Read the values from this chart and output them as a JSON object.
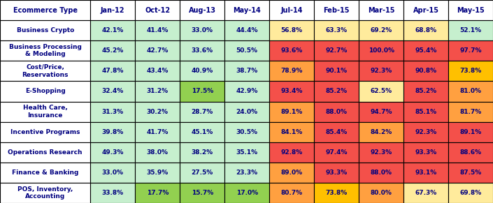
{
  "col_headers": [
    "Ecommerce Type",
    "Jan-12",
    "Oct-12",
    "Aug-13",
    "May-14",
    "Jul-14",
    "Feb-15",
    "Mar-15",
    "Apr-15",
    "May-15"
  ],
  "rows": [
    {
      "label": "Business Crypto",
      "values": [
        "42.1%",
        "41.4%",
        "33.0%",
        "44.4%",
        "56.8%",
        "63.3%",
        "69.2%",
        "68.8%",
        "52.1%"
      ]
    },
    {
      "label": "Business Processing\n& Modeling",
      "values": [
        "45.2%",
        "42.7%",
        "33.6%",
        "50.5%",
        "93.6%",
        "92.7%",
        "100.0%",
        "95.4%",
        "97.7%"
      ]
    },
    {
      "label": "Cost/Price,\nReservations",
      "values": [
        "47.8%",
        "43.4%",
        "40.9%",
        "38.7%",
        "78.9%",
        "90.1%",
        "92.3%",
        "90.8%",
        "73.8%"
      ]
    },
    {
      "label": "E-Shopping",
      "values": [
        "32.4%",
        "31.2%",
        "17.5%",
        "42.9%",
        "93.4%",
        "85.2%",
        "62.5%",
        "85.2%",
        "81.0%"
      ]
    },
    {
      "label": "Health Care,\nInsurance",
      "values": [
        "31.3%",
        "30.2%",
        "28.7%",
        "24.0%",
        "89.1%",
        "88.0%",
        "94.7%",
        "85.1%",
        "81.7%"
      ]
    },
    {
      "label": "Incentive Programs",
      "values": [
        "39.8%",
        "41.7%",
        "45.1%",
        "30.5%",
        "84.1%",
        "85.4%",
        "84.2%",
        "92.3%",
        "89.1%"
      ]
    },
    {
      "label": "Operations Research",
      "values": [
        "49.3%",
        "38.0%",
        "38.2%",
        "35.1%",
        "92.8%",
        "97.4%",
        "92.3%",
        "93.3%",
        "88.6%"
      ]
    },
    {
      "label": "Finance & Banking",
      "values": [
        "33.0%",
        "35.9%",
        "27.5%",
        "23.3%",
        "89.0%",
        "93.3%",
        "88.0%",
        "93.1%",
        "87.5%"
      ]
    },
    {
      "label": "POS, Inventory,\nAccounting",
      "values": [
        "33.8%",
        "17.7%",
        "15.7%",
        "17.0%",
        "80.7%",
        "73.8%",
        "80.0%",
        "67.3%",
        "69.8%"
      ]
    }
  ],
  "cell_colors": [
    [
      "#c6efce",
      "#c6efce",
      "#c6efce",
      "#c6efce",
      "#ffeb9c",
      "#ffeb9c",
      "#ffeb9c",
      "#ffeb9c",
      "#c6efce"
    ],
    [
      "#c6efce",
      "#c6efce",
      "#c6efce",
      "#c6efce",
      "#f4504a",
      "#f4504a",
      "#f4504a",
      "#f4504a",
      "#f4504a"
    ],
    [
      "#c6efce",
      "#c6efce",
      "#c6efce",
      "#c6efce",
      "#ffa040",
      "#f4504a",
      "#f4504a",
      "#f4504a",
      "#ffc000"
    ],
    [
      "#c6efce",
      "#c6efce",
      "#92d050",
      "#c6efce",
      "#f4504a",
      "#f4504a",
      "#ffeb9c",
      "#f4504a",
      "#ffa040"
    ],
    [
      "#c6efce",
      "#c6efce",
      "#c6efce",
      "#c6efce",
      "#ffa040",
      "#f4504a",
      "#f4504a",
      "#f4504a",
      "#ffa040"
    ],
    [
      "#c6efce",
      "#c6efce",
      "#c6efce",
      "#c6efce",
      "#ffa040",
      "#f4504a",
      "#ffa040",
      "#f4504a",
      "#f4504a"
    ],
    [
      "#c6efce",
      "#c6efce",
      "#c6efce",
      "#c6efce",
      "#f4504a",
      "#f4504a",
      "#f4504a",
      "#f4504a",
      "#f4504a"
    ],
    [
      "#c6efce",
      "#c6efce",
      "#c6efce",
      "#c6efce",
      "#ffa040",
      "#f4504a",
      "#f4504a",
      "#f4504a",
      "#f4504a"
    ],
    [
      "#c6efce",
      "#92d050",
      "#92d050",
      "#92d050",
      "#ffa040",
      "#ffc000",
      "#ffa040",
      "#ffeb9c",
      "#ffeb9c"
    ]
  ],
  "header_bg": "#ffffff",
  "header_text_color": "#000080",
  "label_col_bg": "#ffffff",
  "label_text_color": "#000080",
  "cell_text_color": "#000080",
  "border_color": "#000000",
  "figsize": [
    7.05,
    2.91
  ],
  "dpi": 100
}
